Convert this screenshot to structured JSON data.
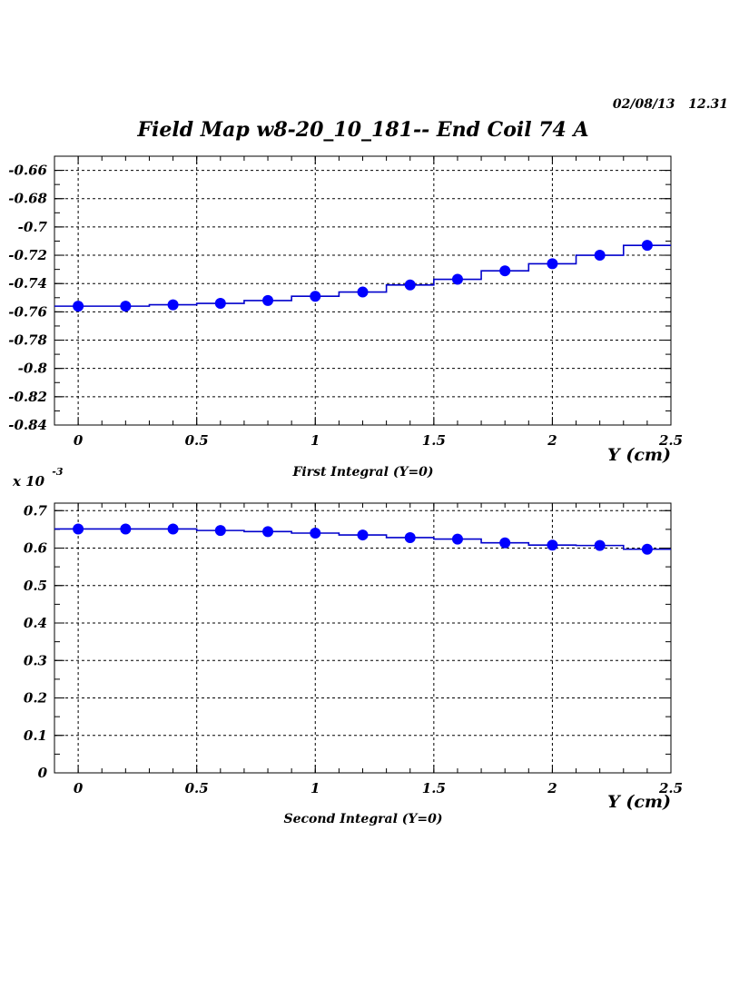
{
  "header": {
    "datetime": "02/08/13   12.31",
    "title": "Field Map w8-20_10_181-- End Coil 74 A"
  },
  "colors": {
    "marker": "#0000ff",
    "step": "#0000cc",
    "grid": "#000000"
  },
  "chart_data": [
    {
      "type": "scatter",
      "caption": "First Integral (Y=0)",
      "xlabel": "Y (cm)",
      "ylabel": "",
      "multiplier": "",
      "xlim": [
        -0.1,
        2.5
      ],
      "ylim": [
        -0.84,
        -0.65
      ],
      "xticks": [
        "0",
        "0.5",
        "1",
        "1.5",
        "2",
        "2.5"
      ],
      "yticks": [
        "-0.66",
        "-0.68",
        "-0.7",
        "-0.72",
        "-0.74",
        "-0.76",
        "-0.78",
        "-0.8",
        "-0.82",
        "-0.84"
      ],
      "grid": true,
      "style": "step with markers",
      "x": [
        0,
        0.2,
        0.4,
        0.6,
        0.8,
        1.0,
        1.2,
        1.4,
        1.6,
        1.8,
        2.0,
        2.2,
        2.4
      ],
      "y": [
        -0.756,
        -0.756,
        -0.755,
        -0.754,
        -0.752,
        -0.749,
        -0.746,
        -0.741,
        -0.737,
        -0.731,
        -0.726,
        -0.72,
        -0.713
      ]
    },
    {
      "type": "scatter",
      "caption": "Second Integral (Y=0)",
      "xlabel": "Y (cm)",
      "ylabel": "",
      "multiplier": "x 10",
      "multiplier_exp": "-3",
      "xlim": [
        -0.1,
        2.5
      ],
      "ylim": [
        0,
        0.72
      ],
      "xticks": [
        "0",
        "0.5",
        "1",
        "1.5",
        "2",
        "2.5"
      ],
      "yticks": [
        "0",
        "0.1",
        "0.2",
        "0.3",
        "0.4",
        "0.5",
        "0.6",
        "0.7"
      ],
      "grid": true,
      "style": "step with markers",
      "x": [
        0,
        0.2,
        0.4,
        0.6,
        0.8,
        1.0,
        1.2,
        1.4,
        1.6,
        1.8,
        2.0,
        2.2,
        2.4
      ],
      "y": [
        0.651,
        0.651,
        0.651,
        0.647,
        0.644,
        0.64,
        0.635,
        0.628,
        0.624,
        0.614,
        0.608,
        0.607,
        0.597
      ]
    }
  ]
}
